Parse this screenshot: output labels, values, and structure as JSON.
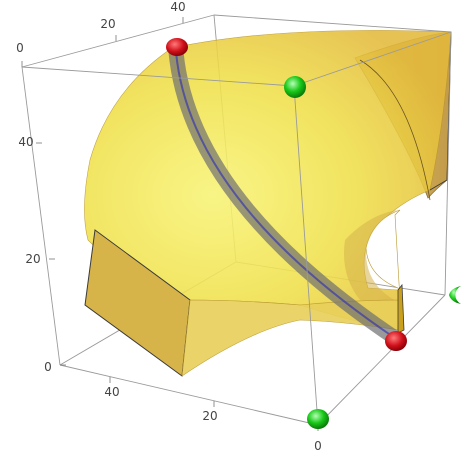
{
  "figure": {
    "colors": {
      "box_edge": "#8c8c8c",
      "surface": "#f2e43a",
      "surface_dark": "#c9a11c",
      "path": "#6f6f6f",
      "path_blue": "#2a2ab8",
      "marker_red": "#d0101a",
      "marker_green": "#18c818"
    },
    "axis_ticks": {
      "top": [
        "0",
        "20",
        "40"
      ],
      "left": [
        "0",
        "20",
        "40"
      ],
      "bottom_left": [
        "40",
        "20",
        "0"
      ]
    },
    "markers": {
      "red": [
        "path-start",
        "path-end"
      ],
      "green": [
        "box-top-front",
        "box-right-front",
        "box-bottom-front"
      ]
    }
  }
}
